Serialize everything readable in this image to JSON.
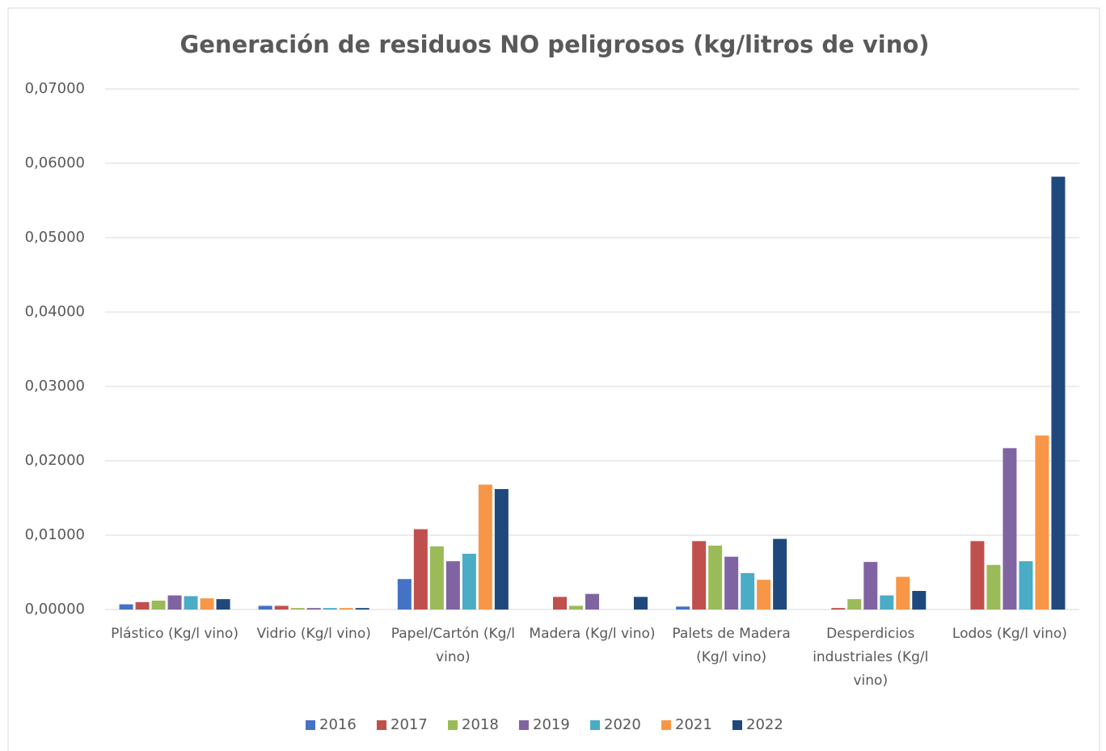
{
  "chart_data": {
    "type": "bar",
    "title": "Generación de residuos NO peligrosos (kg/litros de vino)",
    "categories": [
      "Plástico (Kg/l vino)",
      "Vidrio (Kg/l vino)",
      "Papel/Cartón (Kg/l vino)",
      "Madera (Kg/l vino)",
      "Palets de Madera (Kg/l vino)",
      "Desperdicios industriales (Kg/l vino)",
      "Lodos (Kg/l vino)"
    ],
    "series": [
      {
        "name": "2016",
        "color": "#4472c4",
        "values": [
          0.0007,
          0.0005,
          0.0041,
          0,
          0.0004,
          0,
          0
        ]
      },
      {
        "name": "2017",
        "color": "#c0504d",
        "values": [
          0.001,
          0.0005,
          0.0108,
          0.0017,
          0.0092,
          0.0002,
          0.0092
        ]
      },
      {
        "name": "2018",
        "color": "#9bbb59",
        "values": [
          0.0012,
          0.0002,
          0.0085,
          0.0005,
          0.0086,
          0.0014,
          0.006
        ]
      },
      {
        "name": "2019",
        "color": "#8064a2",
        "values": [
          0.0019,
          0.0002,
          0.0065,
          0.0021,
          0.0071,
          0.0064,
          0.0217
        ]
      },
      {
        "name": "2020",
        "color": "#4bacc6",
        "values": [
          0.0018,
          0.0002,
          0.0075,
          0,
          0.0049,
          0.0019,
          0.0065
        ]
      },
      {
        "name": "2021",
        "color": "#f79646",
        "values": [
          0.0015,
          0.0002,
          0.0168,
          0,
          0.004,
          0.0044,
          0.0234
        ]
      },
      {
        "name": "2022",
        "color": "#1f497d",
        "values": [
          0.0014,
          0.0002,
          0.0162,
          0.0017,
          0.0095,
          0.0025,
          0.0582
        ]
      }
    ],
    "ylim": [
      0,
      0.07
    ],
    "yticks": [
      {
        "value": 0,
        "label": "0,00000"
      },
      {
        "value": 0.01,
        "label": "0,01000"
      },
      {
        "value": 0.02,
        "label": "0,02000"
      },
      {
        "value": 0.03,
        "label": "0,03000"
      },
      {
        "value": 0.04,
        "label": "0,04000"
      },
      {
        "value": 0.05,
        "label": "0,05000"
      },
      {
        "value": 0.06,
        "label": "0,06000"
      },
      {
        "value": 0.07,
        "label": "0,07000"
      }
    ],
    "grid": true,
    "legend": "bottom"
  }
}
